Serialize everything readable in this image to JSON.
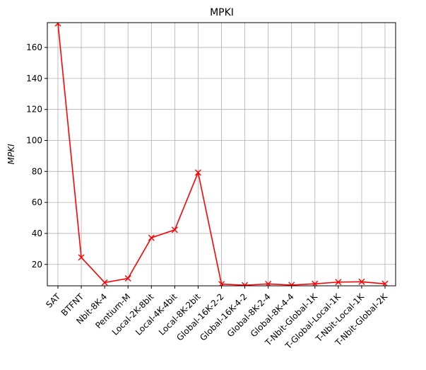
{
  "chart_data": {
    "type": "line",
    "title": "MPKI",
    "xlabel": "",
    "ylabel": "MPKI",
    "categories": [
      "SAT",
      "BTFNT",
      "Nbit-8K-4",
      "Pentium-M",
      "Local-2K-8bit",
      "Local-4K-4bit",
      "Local-8K-2bit",
      "Global-16K-2-2",
      "Global-16K-4-2",
      "Global-8K-2-4",
      "Global-8K-4-4",
      "T-Nbit-Global-1K",
      "T-Global-Local-1K",
      "T-Nbit-Local-1K",
      "T-Nbit-Global-2K"
    ],
    "series": [
      {
        "values": [
          175.5,
          24.5,
          8.3,
          11.0,
          37.2,
          42.3,
          79.3,
          7.3,
          6.6,
          7.4,
          6.7,
          7.5,
          8.6,
          8.8,
          7.5
        ],
        "color": "#ff0000",
        "marker": "x"
      }
    ],
    "ylim": [
      6.2,
      176
    ],
    "yticks": [
      20,
      40,
      60,
      80,
      100,
      120,
      140,
      160
    ],
    "grid": true
  }
}
